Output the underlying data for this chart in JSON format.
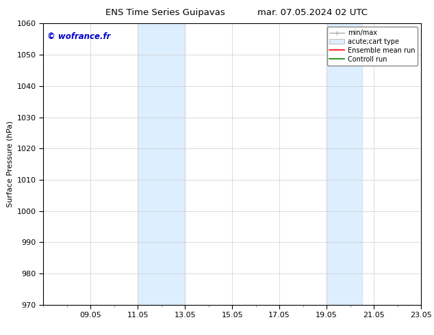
{
  "title_left": "ENS Time Series Guipavas",
  "title_right": "mar. 07.05.2024 02 UTC",
  "ylabel": "Surface Pressure (hPa)",
  "ylim": [
    970,
    1060
  ],
  "yticks": [
    970,
    980,
    990,
    1000,
    1010,
    1020,
    1030,
    1040,
    1050,
    1060
  ],
  "x_tick_labels": [
    "09.05",
    "11.05",
    "13.05",
    "15.05",
    "17.05",
    "19.05",
    "21.05",
    "23.05"
  ],
  "x_tick_positions": [
    2,
    4,
    6,
    8,
    10,
    12,
    14,
    16
  ],
  "xlim": [
    0,
    16
  ],
  "shaded_bands": [
    {
      "x_start": 4,
      "x_end": 6
    },
    {
      "x_start": 12,
      "x_end": 13.5
    }
  ],
  "shaded_color": "#ddeeff",
  "shaded_edge_color": "#c0d8f0",
  "watermark": "© wofrance.fr",
  "watermark_color": "#0000cc",
  "background_color": "#ffffff",
  "grid_color": "#cccccc",
  "title_fontsize": 9.5,
  "label_fontsize": 8,
  "tick_fontsize": 8,
  "legend_fontsize": 7
}
